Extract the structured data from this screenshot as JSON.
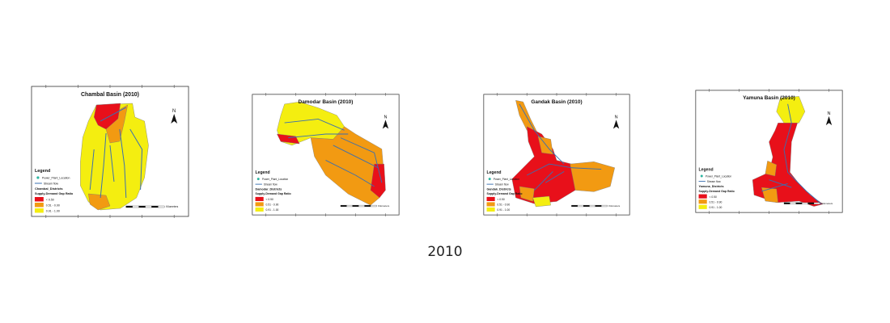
{
  "caption": "2010",
  "colors": {
    "low": "#e8101a",
    "mid": "#f29a12",
    "high": "#f4ee10",
    "river": "#3a6fb0",
    "plant": "#2bb5a0"
  },
  "maps": [
    {
      "title": "Chambal Basin (2010)",
      "district_layer": "Chambal_Districts"
    },
    {
      "title": "Damodar Basin (2010)",
      "district_layer": "Damodar_Districts"
    },
    {
      "title": "Gandak Basin (2010)",
      "district_layer": "Gandak_Districts"
    },
    {
      "title": "Yamuna Basin (2010)",
      "district_layer": "Yamuna_Districts"
    }
  ],
  "legend": {
    "heading": "Legend",
    "power_plant": "Power_Plant_Location",
    "stream": "Stream flow",
    "ratio_title": "Supply-Demand Gap Ratio",
    "classes": [
      "< 0.50",
      "0.51 - 0.90",
      "0.91 - 1.00"
    ]
  },
  "north_label": "N",
  "scale_unit": "Kilometers"
}
